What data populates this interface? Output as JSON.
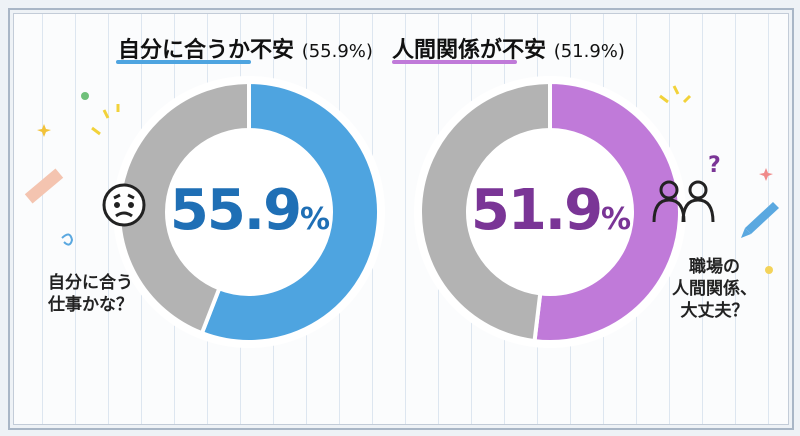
{
  "chart_data": [
    {
      "type": "pie",
      "donut": true,
      "title": "自分に合うか不安",
      "title_value": "(55.9%)",
      "center_label": "55.9",
      "center_unit": "%",
      "values": [
        55.9,
        44.1
      ],
      "colors": [
        "#4ea4e0",
        "#b3b3b3"
      ],
      "accent": "#1f6fb5"
    },
    {
      "type": "pie",
      "donut": true,
      "title": "人間関係が不安",
      "title_value": "(51.9%)",
      "center_label": "51.9",
      "center_unit": "%",
      "values": [
        51.9,
        48.1
      ],
      "colors": [
        "#c07ad9",
        "#b3b3b3"
      ],
      "accent": "#7a3596"
    }
  ],
  "notes": {
    "left": [
      "自分に合う",
      "仕事かな？"
    ],
    "right": [
      "職場の",
      "人間関係、",
      "大丈夫？"
    ]
  },
  "icons": {
    "left": "worried-face-icon",
    "right": "two-people-icon"
  }
}
